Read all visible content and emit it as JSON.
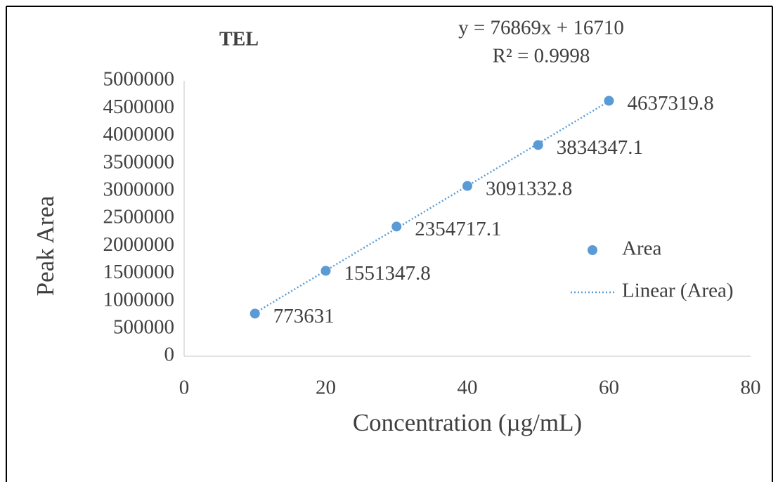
{
  "chart_data": {
    "type": "scatter",
    "title": "TEL",
    "x_label": "Concentration (µg/mL)",
    "y_label": "Peak Area",
    "series": [
      {
        "name": "Area",
        "color": "#5b9bd5",
        "x": [
          10,
          20,
          30,
          40,
          50,
          60
        ],
        "values": [
          773631,
          1551347.8,
          2354717.1,
          3091332.8,
          3834347.1,
          4637319.8
        ]
      }
    ],
    "trendline": {
      "name": "Linear (Area)",
      "equation": "y = 76869x + 16710",
      "r_squared": "R² = 0.9998",
      "slope": 76869,
      "intercept": 16710
    },
    "xlim": [
      0,
      80
    ],
    "xticks": [
      0,
      20,
      40,
      60,
      80
    ],
    "ylim": [
      0,
      5000000
    ],
    "yticks": [
      0,
      500000,
      1000000,
      1500000,
      2000000,
      2500000,
      3000000,
      3500000,
      4000000,
      4500000,
      5000000
    ],
    "legend": "right",
    "grid": false
  }
}
